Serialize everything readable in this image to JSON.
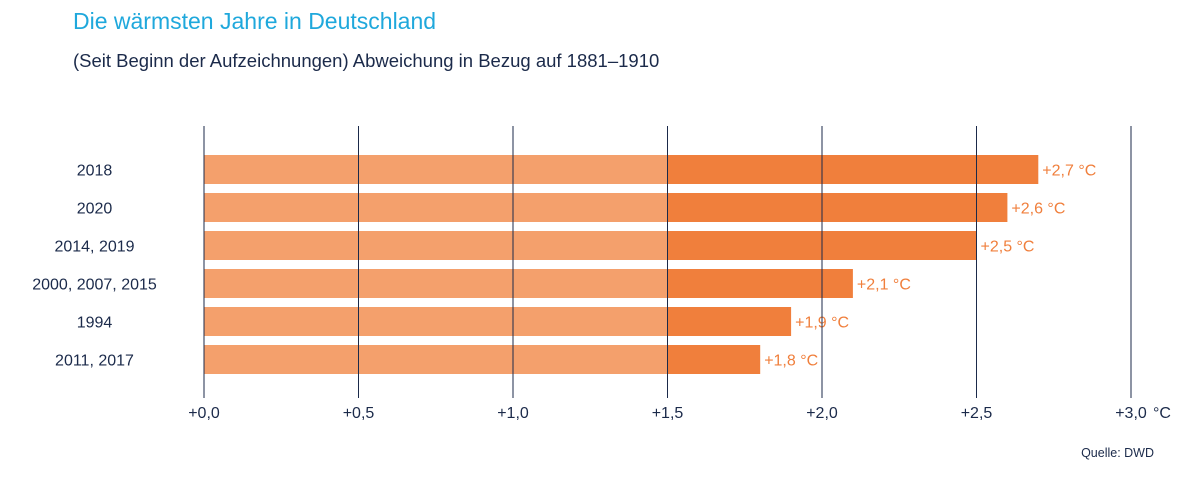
{
  "title": "Die wärmsten Jahre in Deutschland",
  "subtitle": "(Seit Beginn der Aufzeichnungen) Abweichung in Bezug auf 1881–1910",
  "source": "Quelle: DWD",
  "colors": {
    "title": "#1fa8dc",
    "text": "#1b2a4a",
    "bar_base": "#f4a06c",
    "bar_excess": "#f07f3c",
    "value_label": "#f07f3c",
    "axis_line": "#1b2a4a"
  },
  "chart_data": {
    "type": "bar",
    "orientation": "horizontal",
    "categories": [
      "2018",
      "2020",
      "2014, 2019",
      "2000, 2007, 2015",
      "1994",
      "2011, 2017"
    ],
    "values": [
      2.7,
      2.6,
      2.5,
      2.1,
      1.9,
      1.8
    ],
    "value_labels": [
      "+2,7 °C",
      "+2,6 °C",
      "+2,5 °C",
      "+2,1 °C",
      "+1,9 °C",
      "+1,8 °C"
    ],
    "split_value": 1.5,
    "xlim": [
      0,
      3.0
    ],
    "xticks": [
      0,
      0.5,
      1.0,
      1.5,
      2.0,
      2.5,
      3.0
    ],
    "xtick_labels": [
      "+0,0",
      "+0,5",
      "+1,0",
      "+1,5",
      "+2,0",
      "+2,5",
      "+3,0"
    ],
    "xunit": "°C",
    "grid": true
  }
}
